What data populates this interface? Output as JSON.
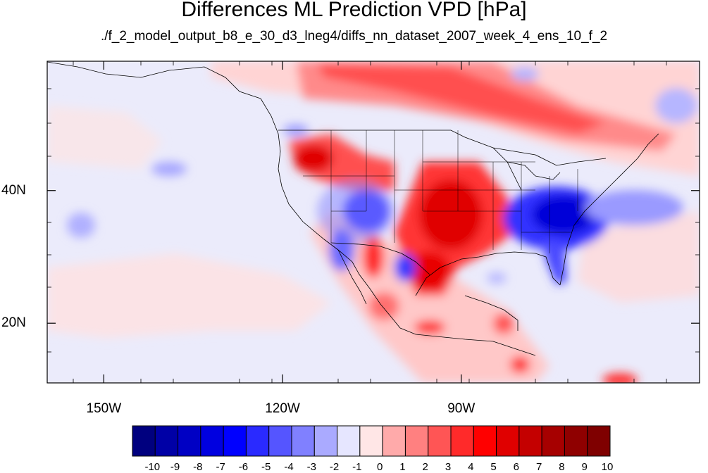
{
  "title": "Differences ML Prediction VPD [hPa]",
  "subtitle": "./f_2_model_output_b8_e_30_d3_lneg4/diffs_nn_dataset_2007_week_4_ens_10_f_2",
  "map": {
    "lon_ticks": [
      {
        "label": "150W",
        "lon": -150
      },
      {
        "label": "120W",
        "lon": -120
      },
      {
        "label": "90W",
        "lon": -90
      }
    ],
    "lat_ticks": [
      {
        "label": "40N",
        "lat": 40
      },
      {
        "label": "20N",
        "lat": 20
      }
    ],
    "lon_range": [
      -159.5,
      -50
    ],
    "lat_range": [
      11,
      59.5
    ]
  },
  "colorbar": {
    "labels": [
      "-10",
      "-9",
      "-8",
      "-7",
      "-6",
      "-5",
      "-4",
      "-3",
      "-2",
      "-1",
      "0",
      "1",
      "2",
      "3",
      "4",
      "5",
      "6",
      "7",
      "8",
      "9",
      "10"
    ],
    "colors": [
      "#00007f",
      "#0000a6",
      "#0000c4",
      "#0000e0",
      "#0000ff",
      "#2a2aff",
      "#5555ff",
      "#8080ff",
      "#aaaaff",
      "#e6e6ff",
      "#ffe6e6",
      "#ffaaaa",
      "#ff8080",
      "#ff5555",
      "#ff2a2a",
      "#ff0000",
      "#e00000",
      "#c40000",
      "#a60000",
      "#8f0000",
      "#7f0000"
    ]
  },
  "features": {
    "west_us_center": {
      "lon": -109,
      "lat": 36
    },
    "southeast_us": {
      "lon": -83,
      "lat": 35
    },
    "southern_plains": {
      "lon": -98,
      "lat": 34
    },
    "northwest_us": {
      "lon": -116,
      "lat": 44
    },
    "canada_north": {
      "lon": -100,
      "lat": 55
    }
  }
}
